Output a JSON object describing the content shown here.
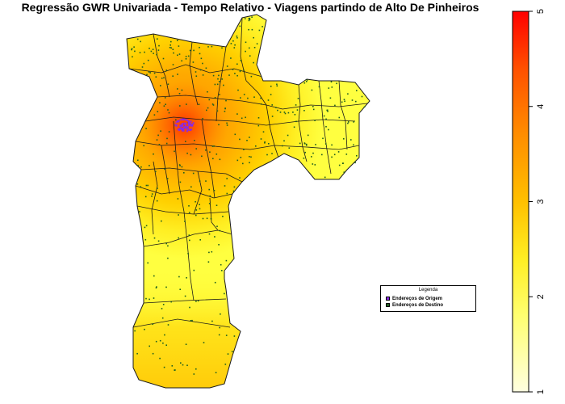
{
  "title": "Regressão GWR Univariada - Tempo Relativo - Viagens partindo de Alto De Pinheiros",
  "colors": {
    "low": "#ffffe0",
    "mid_low": "#ffff33",
    "mid": "#ffcc00",
    "mid_high": "#ff9900",
    "high_mid": "#ff6600",
    "high": "#ff0000",
    "origin_point": "#8a2be2",
    "destination_point": "#1f5f1f",
    "border": "#1a1a1a"
  },
  "legend": {
    "title": "Legenda",
    "items": [
      {
        "label": "Endereços de Origem",
        "color": "#8a2be2"
      },
      {
        "label": "Endereços de Destino",
        "color": "#1f5f1f"
      }
    ]
  },
  "colorbar": {
    "min": 1,
    "max": 5,
    "ticks": [
      {
        "value": 1,
        "label": "1"
      },
      {
        "value": 2,
        "label": "2"
      },
      {
        "value": 3,
        "label": "3"
      },
      {
        "value": 4,
        "label": "4"
      },
      {
        "value": 5,
        "label": "5"
      }
    ]
  }
}
